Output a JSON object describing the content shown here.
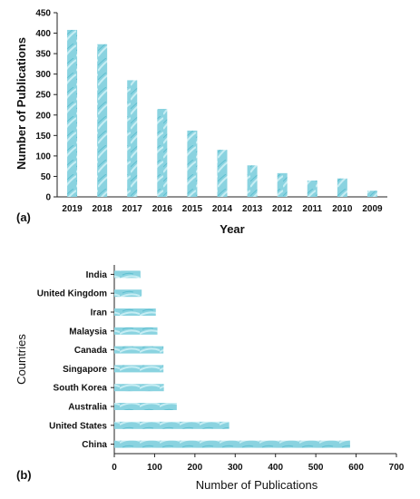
{
  "chart_data": [
    {
      "panel_label": "(a)",
      "type": "bar",
      "orientation": "vertical",
      "categories": [
        "2019",
        "2018",
        "2017",
        "2016",
        "2015",
        "2014",
        "2013",
        "2012",
        "2011",
        "2010",
        "2009"
      ],
      "values": [
        408,
        373,
        285,
        215,
        162,
        115,
        77,
        58,
        40,
        45,
        15
      ],
      "xlabel": "Year",
      "ylabel": "Number of Publications",
      "ylim": [
        0,
        450
      ],
      "yticks": [
        0,
        50,
        100,
        150,
        200,
        250,
        300,
        350,
        400,
        450
      ],
      "grid": false,
      "legend": "none",
      "bar_color": "#8ad3e0"
    },
    {
      "panel_label": "(b)",
      "type": "bar",
      "orientation": "horizontal",
      "categories": [
        "India",
        "United Kingdom",
        "Iran",
        "Malaysia",
        "Canada",
        "Singapore",
        "South Korea",
        "Australia",
        "United States",
        "China"
      ],
      "values": [
        65,
        68,
        103,
        107,
        122,
        122,
        123,
        155,
        285,
        585
      ],
      "xlabel": "Number of Publications",
      "ylabel": "Countries",
      "xlim": [
        0,
        700
      ],
      "xticks": [
        0,
        100,
        200,
        300,
        400,
        500,
        600,
        700
      ],
      "grid": false,
      "legend": "none",
      "bar_color": "#8ad3e0"
    }
  ]
}
